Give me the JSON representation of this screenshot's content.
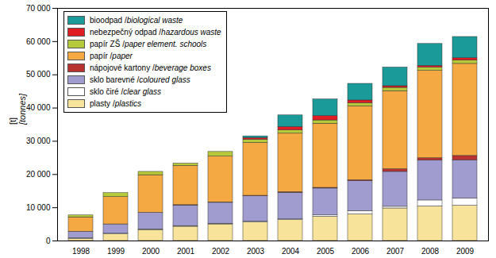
{
  "chart_data": {
    "type": "bar",
    "stacked": true,
    "legend": "top-left",
    "y_label": "[t]",
    "y_label_en": "[tonnes]",
    "categories": [
      "1998",
      "1999",
      "2000",
      "2001",
      "2002",
      "2003",
      "2004",
      "2005",
      "2006",
      "2007",
      "2008",
      "2009"
    ],
    "ylim": [
      0,
      70000
    ],
    "yticks": [
      0,
      {
        "value": 10000,
        "label": "10 000"
      },
      {
        "value": 20000,
        "label": "20 000"
      },
      {
        "value": 30000,
        "label": "30 000"
      },
      {
        "value": 40000,
        "label": "40 000"
      },
      {
        "value": 50000,
        "label": "50 000"
      },
      {
        "value": 60000,
        "label": "60 000"
      },
      {
        "value": 70000,
        "label": "70 000"
      }
    ],
    "series": [
      {
        "name": "plasty / plastics",
        "color": "#f7e49a",
        "values": [
          600,
          2000,
          3300,
          4300,
          5000,
          5600,
          6300,
          7300,
          8000,
          9800,
          10400,
          10600
        ]
      },
      {
        "name": "sklo čiré / clear glass",
        "color": "#ffffff",
        "values": [
          200,
          200,
          200,
          200,
          200,
          200,
          200,
          400,
          1000,
          500,
          1800,
          2200
        ]
      },
      {
        "name": "sklo barevné / coloured glass",
        "color": "#a09cd0",
        "values": [
          2000,
          2800,
          5000,
          6200,
          6300,
          7700,
          8000,
          8100,
          9000,
          10500,
          12000,
          11500
        ]
      },
      {
        "name": "nápojové kartony / beverage boxes",
        "color": "#b83232",
        "values": [
          0,
          0,
          0,
          100,
          100,
          100,
          200,
          200,
          300,
          800,
          700,
          1300
        ]
      },
      {
        "name": "papír / paper",
        "color": "#f5a942",
        "values": [
          4300,
          8200,
          11300,
          11800,
          13800,
          15900,
          17600,
          19300,
          22200,
          23500,
          26300,
          27700
        ]
      },
      {
        "name": "papír ZŠ / paper element. schools",
        "color": "#b5c93a",
        "values": [
          600,
          1200,
          1000,
          700,
          1400,
          1000,
          1000,
          1000,
          1000,
          1000,
          1000,
          1000
        ]
      },
      {
        "name": "nebezpečný odpad / hazardous waste",
        "color": "#e01c24",
        "values": [
          0,
          0,
          0,
          0,
          0,
          500,
          1000,
          1300,
          800,
          500,
          500,
          700
        ]
      },
      {
        "name": "bioodpad / biological waste",
        "color": "#1a9a98",
        "values": [
          0,
          0,
          0,
          0,
          0,
          500,
          3500,
          5000,
          5000,
          5600,
          6600,
          6400
        ]
      }
    ]
  }
}
